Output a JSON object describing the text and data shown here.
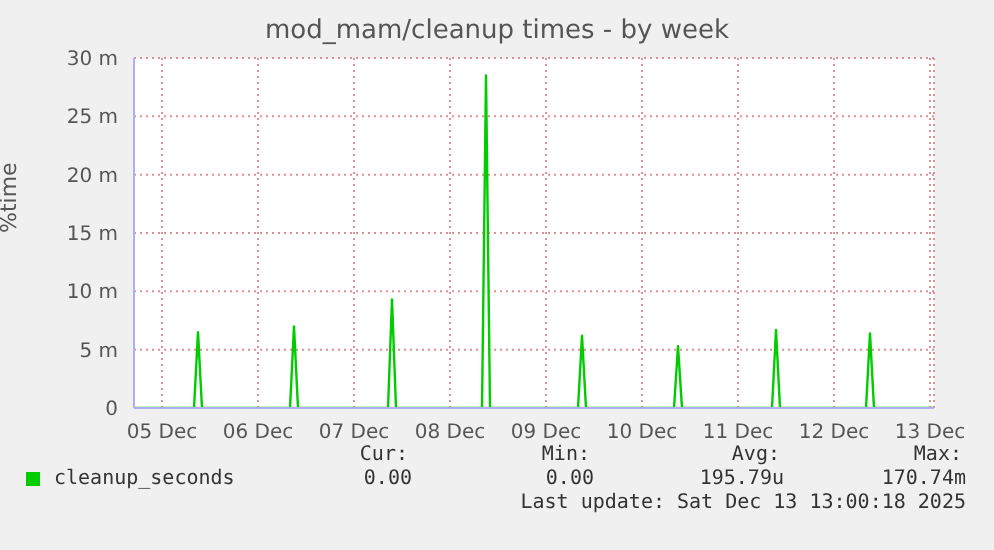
{
  "chart_data": {
    "type": "line",
    "title": "mod_mam/cleanup times - by week",
    "ylabel": "%time",
    "xlim": [
      "2025-12-05T05:00",
      "2025-12-13T13:00"
    ],
    "xticks": [
      {
        "value": "2025-12-05T12:00",
        "label": "05 Dec"
      },
      {
        "value": "2025-12-06T12:00",
        "label": "06 Dec"
      },
      {
        "value": "2025-12-07T12:00",
        "label": "07 Dec"
      },
      {
        "value": "2025-12-08T12:00",
        "label": "08 Dec"
      },
      {
        "value": "2025-12-09T12:00",
        "label": "09 Dec"
      },
      {
        "value": "2025-12-10T12:00",
        "label": "10 Dec"
      },
      {
        "value": "2025-12-11T12:00",
        "label": "11 Dec"
      },
      {
        "value": "2025-12-12T12:00",
        "label": "12 Dec"
      },
      {
        "value": "2025-12-13T12:00",
        "label": "13 Dec"
      }
    ],
    "ylim": [
      0,
      30
    ],
    "yticks": [
      0,
      {
        "value": 5,
        "label": "5 m"
      },
      {
        "value": 10,
        "label": "10 m"
      },
      {
        "value": 15,
        "label": "15 m"
      },
      {
        "value": 20,
        "label": "20 m"
      },
      {
        "value": 25,
        "label": "25 m"
      },
      {
        "value": 30,
        "label": "30 m"
      }
    ],
    "grid": true,
    "legend": "bottom",
    "series": [
      {
        "name": "cleanup_seconds",
        "color": "#00cc00",
        "x": [
          "2025-12-05T05:00",
          "2025-12-05T20:00",
          "2025-12-05T21:00",
          "2025-12-05T22:00",
          "2025-12-06T20:00",
          "2025-12-06T21:00",
          "2025-12-06T22:00",
          "2025-12-07T20:30",
          "2025-12-07T21:30",
          "2025-12-07T22:30",
          "2025-12-08T20:00",
          "2025-12-08T21:00",
          "2025-12-08T22:00",
          "2025-12-09T20:00",
          "2025-12-09T21:00",
          "2025-12-09T22:00",
          "2025-12-10T20:00",
          "2025-12-10T21:00",
          "2025-12-10T22:00",
          "2025-12-11T20:30",
          "2025-12-11T21:30",
          "2025-12-11T22:30",
          "2025-12-12T20:00",
          "2025-12-12T21:00",
          "2025-12-12T22:00",
          "2025-12-13T13:00"
        ],
        "values": [
          0,
          0,
          6.5,
          0,
          0,
          7,
          0,
          0,
          9.3,
          0,
          0,
          28.5,
          0,
          0,
          6.2,
          0,
          0,
          5.3,
          0,
          0,
          6.7,
          0,
          0,
          6.4,
          0,
          0
        ]
      }
    ],
    "annotations": [
      "Cur:",
      "Min:",
      "Avg:",
      "Max:",
      "0.00",
      "0.00",
      "195.79u",
      "170.74m",
      "Last update: Sat Dec 13 13:00:18 2025"
    ]
  }
}
